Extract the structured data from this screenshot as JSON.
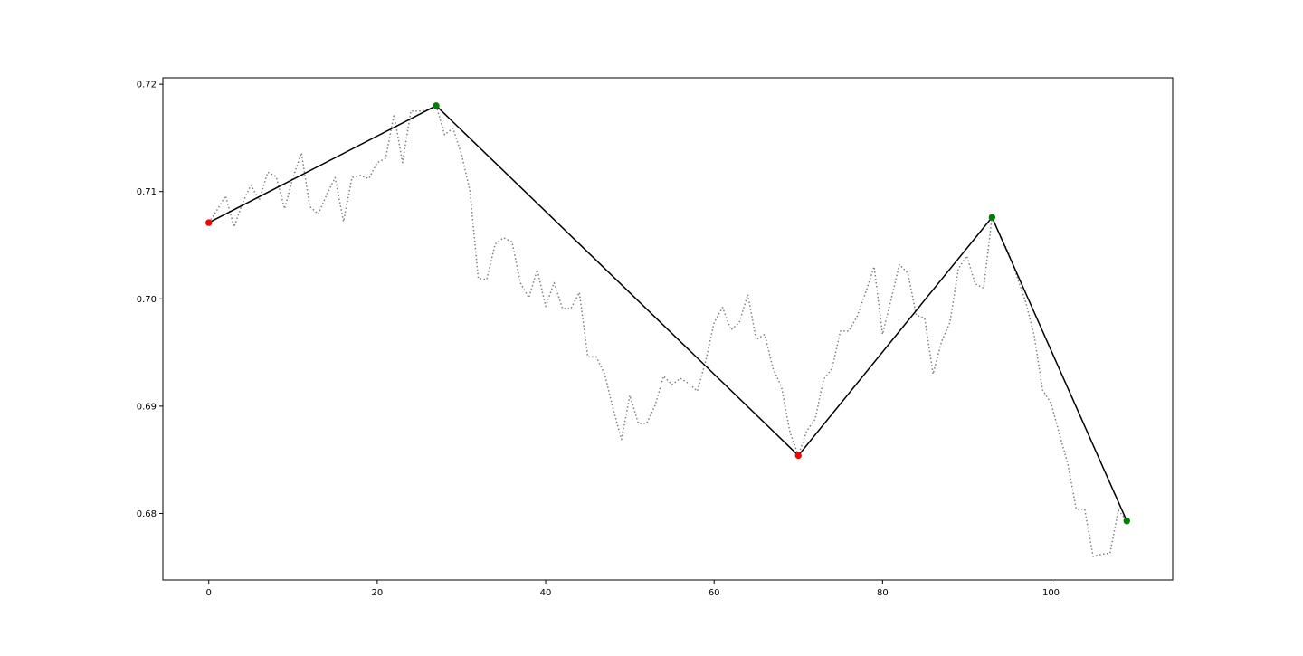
{
  "chart_data": {
    "type": "line",
    "title": "",
    "xlabel": "",
    "ylabel": "",
    "xlim": [
      -5.45,
      114.45
    ],
    "ylim": [
      0.6738,
      0.7206
    ],
    "grid": false,
    "x_ticks": [
      0,
      20,
      40,
      60,
      80,
      100
    ],
    "x_tick_labels": [
      "0",
      "20",
      "40",
      "60",
      "80",
      "100"
    ],
    "y_ticks": [
      0.68,
      0.69,
      0.7,
      0.71,
      0.72
    ],
    "y_tick_labels": [
      "0.68",
      "0.69",
      "0.70",
      "0.71",
      "0.72"
    ],
    "series": [
      {
        "style": "dotted",
        "color": "#808080",
        "x": [
          0,
          1,
          2,
          3,
          4,
          5,
          6,
          7,
          8,
          9,
          10,
          11,
          12,
          13,
          14,
          15,
          16,
          17,
          18,
          19,
          20,
          21,
          22,
          23,
          24,
          25,
          26,
          27,
          28,
          29,
          30,
          31,
          32,
          33,
          34,
          35,
          36,
          37,
          38,
          39,
          40,
          41,
          42,
          43,
          44,
          45,
          46,
          47,
          48,
          49,
          50,
          51,
          52,
          53,
          54,
          55,
          56,
          57,
          58,
          59,
          60,
          61,
          62,
          63,
          64,
          65,
          66,
          67,
          68,
          69,
          70,
          71,
          72,
          73,
          74,
          75,
          76,
          77,
          78,
          79,
          80,
          81,
          82,
          83,
          84,
          85,
          86,
          87,
          88,
          89,
          90,
          91,
          92,
          93,
          94,
          95,
          96,
          97,
          98,
          99,
          100,
          101,
          102,
          103,
          104,
          105,
          106,
          107,
          108,
          109
        ],
        "values": [
          0.7071,
          0.7083,
          0.7096,
          0.7067,
          0.7089,
          0.7106,
          0.7092,
          0.7118,
          0.7114,
          0.7084,
          0.7113,
          0.7136,
          0.7086,
          0.7079,
          0.7097,
          0.7113,
          0.7072,
          0.7113,
          0.7115,
          0.7112,
          0.7127,
          0.7131,
          0.7172,
          0.7127,
          0.7175,
          0.7175,
          0.7176,
          0.718,
          0.7153,
          0.7159,
          0.7135,
          0.7101,
          0.7019,
          0.7018,
          0.7051,
          0.7057,
          0.7053,
          0.7015,
          0.7001,
          0.7027,
          0.6993,
          0.7015,
          0.6991,
          0.6991,
          0.7006,
          0.6946,
          0.6946,
          0.693,
          0.6898,
          0.6869,
          0.691,
          0.6884,
          0.6884,
          0.6901,
          0.6928,
          0.692,
          0.6926,
          0.6921,
          0.6914,
          0.6942,
          0.6978,
          0.6992,
          0.6971,
          0.6978,
          0.7004,
          0.6962,
          0.6967,
          0.6935,
          0.6918,
          0.6876,
          0.6854,
          0.6877,
          0.6888,
          0.6925,
          0.6935,
          0.697,
          0.697,
          0.6984,
          0.7006,
          0.703,
          0.6967,
          0.6999,
          0.7032,
          0.7024,
          0.6985,
          0.6982,
          0.693,
          0.696,
          0.6978,
          0.7028,
          0.704,
          0.7014,
          0.701,
          0.7076,
          0.7058,
          0.7042,
          0.702,
          0.6997,
          0.6966,
          0.6915,
          0.6903,
          0.6874,
          0.6846,
          0.6804,
          0.6804,
          0.676,
          0.6762,
          0.6763,
          0.6803,
          0.6793
        ]
      },
      {
        "style": "solid",
        "color": "#000000",
        "x": [
          0,
          27,
          70,
          93,
          109
        ],
        "values": [
          0.7071,
          0.718,
          0.6854,
          0.7076,
          0.6793
        ]
      }
    ],
    "markers": [
      {
        "x": 0,
        "y": 0.7071,
        "color": "#ff0000"
      },
      {
        "x": 27,
        "y": 0.718,
        "color": "#008000"
      },
      {
        "x": 70,
        "y": 0.6854,
        "color": "#ff0000"
      },
      {
        "x": 93,
        "y": 0.7076,
        "color": "#008000"
      },
      {
        "x": 109,
        "y": 0.6793,
        "color": "#008000"
      }
    ]
  }
}
